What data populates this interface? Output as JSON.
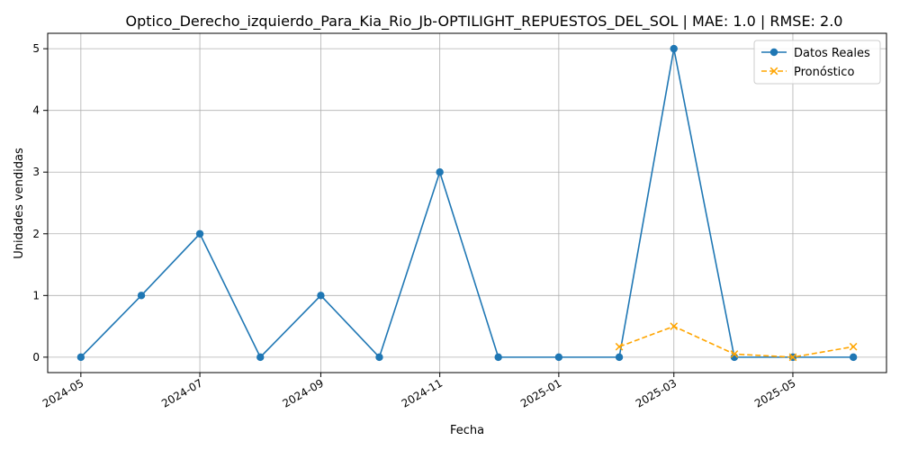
{
  "chart_data": {
    "type": "line",
    "title": "Optico_Derecho_izquierdo_Para_Kia_Rio_Jb-OPTILIGHT_REPUESTOS_DEL_SOL | MAE: 1.0 | RMSE: 2.0",
    "xlabel": "Fecha",
    "ylabel": "Unidades vendidas",
    "x_ticks": [
      "2024-05",
      "2024-07",
      "2024-09",
      "2024-11",
      "2025-01",
      "2025-03",
      "2025-05"
    ],
    "y_ticks": [
      "0",
      "1",
      "2",
      "3",
      "4",
      "5"
    ],
    "xlim": [
      "2024-04-14",
      "2025-06-18"
    ],
    "ylim": [
      -0.25,
      5.25
    ],
    "grid": true,
    "legend_position": "top-right",
    "series": [
      {
        "name": "Datos Reales",
        "color": "#1f77b4",
        "style": "solid",
        "marker": "circle",
        "x": [
          "2024-05-01",
          "2024-06-01",
          "2024-07-01",
          "2024-08-01",
          "2024-09-01",
          "2024-10-01",
          "2024-11-01",
          "2024-12-01",
          "2025-01-01",
          "2025-02-01",
          "2025-03-01",
          "2025-04-01",
          "2025-05-01",
          "2025-06-01"
        ],
        "y": [
          0,
          1,
          2,
          0,
          1,
          0,
          3,
          0,
          0,
          0,
          5,
          0,
          0,
          0
        ]
      },
      {
        "name": "Pronóstico",
        "color": "#ffa500",
        "style": "dashed",
        "marker": "x",
        "x": [
          "2025-02-01",
          "2025-03-01",
          "2025-04-01",
          "2025-05-01",
          "2025-06-01"
        ],
        "y": [
          0.17,
          0.5,
          0.05,
          0.0,
          0.17
        ]
      }
    ]
  }
}
